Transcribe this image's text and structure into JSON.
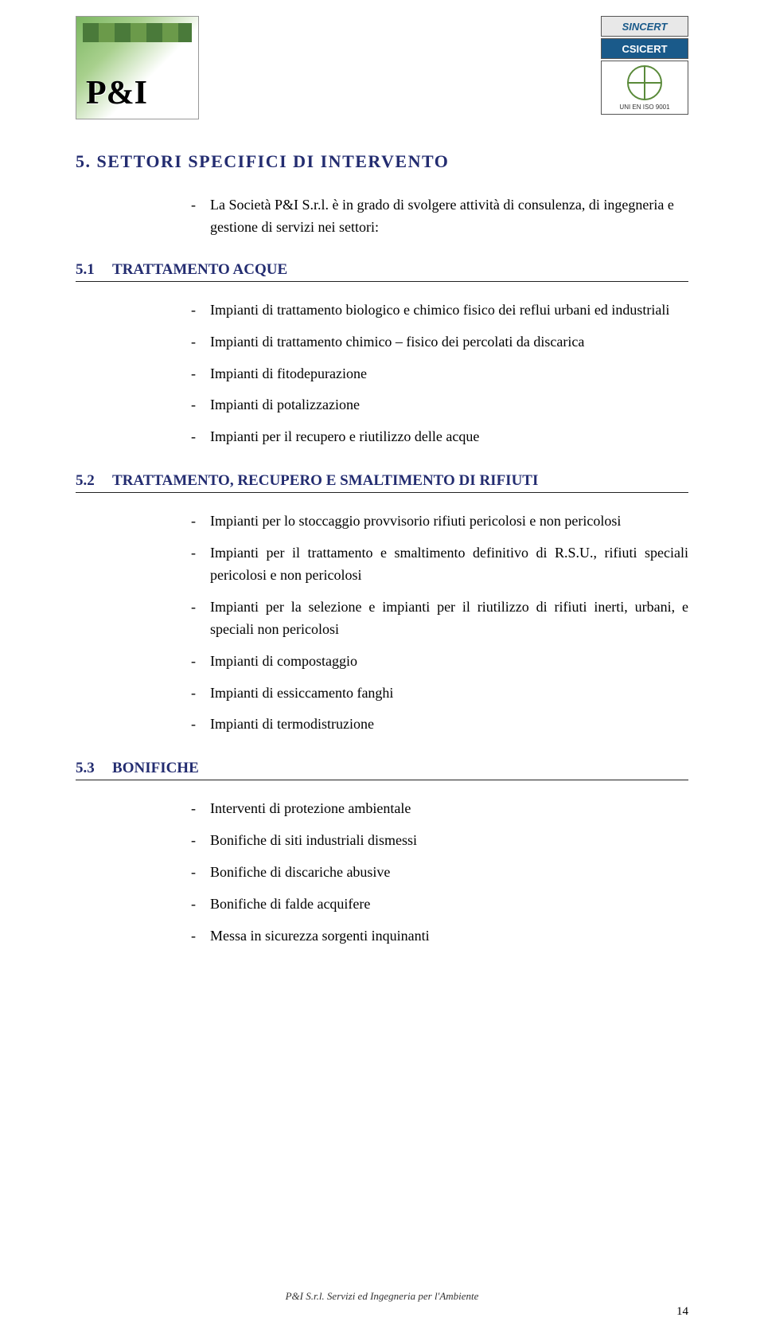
{
  "colors": {
    "heading": "#232c70",
    "text": "#000000",
    "rule": "#222222",
    "background": "#ffffff"
  },
  "typography": {
    "body_family": "Garamond, Times New Roman, serif",
    "body_size_pt": 13,
    "heading_size_pt": 16,
    "heading_letter_spacing": 1.5
  },
  "logos": {
    "left_text": "P&I",
    "sincert": "SINCERT",
    "csicert": "CSICERT",
    "iso_label": "UNI EN ISO 9001"
  },
  "main_title": "5.  SETTORI SPECIFICI DI INTERVENTO",
  "intro": "La Società P&I S.r.l. è in grado di svolgere attività di consulenza, di ingegneria e gestione di servizi nei settori:",
  "sections": [
    {
      "num": "5.1",
      "label_pre": "T",
      "label_sc": "RATTAMENTO",
      "label_mid": " A",
      "label_sc2": "CQUE",
      "items": [
        "Impianti di trattamento biologico e chimico fisico dei reflui urbani ed industriali",
        "Impianti di trattamento chimico – fisico dei percolati da discarica",
        "Impianti di fitodepurazione",
        "Impianti di potalizzazione",
        "Impianti per il recupero e riutilizzo delle acque"
      ]
    },
    {
      "num": "5.2",
      "label_pre": "T",
      "label_sc": "RATTAMENTO",
      "label_mid": ", R",
      "label_sc2": "ECUPERO",
      "label_mid2": " E S",
      "label_sc3": "MALTIMENTO",
      "label_mid3": " D",
      "label_sc4": "I",
      "label_mid4": " R",
      "label_sc5": "IFIUTI",
      "items": [
        "Impianti per lo stoccaggio provvisorio rifiuti pericolosi e non pericolosi",
        "Impianti per il trattamento e smaltimento definitivo di R.S.U., rifiuti speciali pericolosi e non pericolosi",
        "Impianti per la selezione e impianti per il riutilizzo di rifiuti inerti, urbani, e speciali non pericolosi",
        "Impianti di compostaggio",
        "Impianti di essiccamento fanghi",
        "Impianti di termodistruzione"
      ]
    },
    {
      "num": "5.3",
      "label_pre": "B",
      "label_sc": "ONIFICHE",
      "items": [
        "Interventi di protezione ambientale",
        "Bonifiche di siti industriali dismessi",
        "Bonifiche di discariche abusive",
        "Bonifiche di falde acquifere",
        "Messa in sicurezza sorgenti inquinanti"
      ]
    }
  ],
  "footer": "P&I S.r.l. Servizi ed Ingegneria per l'Ambiente",
  "page_number": "14"
}
